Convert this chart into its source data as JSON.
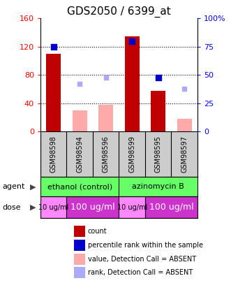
{
  "title": "GDS2050 / 6399_at",
  "samples": [
    "GSM98598",
    "GSM98594",
    "GSM98596",
    "GSM98599",
    "GSM98595",
    "GSM98597"
  ],
  "count_values": [
    110,
    null,
    null,
    135,
    58,
    null
  ],
  "count_absent_values": [
    null,
    30,
    38,
    null,
    null,
    18
  ],
  "percentile_values": [
    75,
    null,
    null,
    80,
    48,
    null
  ],
  "percentile_absent_values": [
    null,
    42,
    48,
    null,
    null,
    38
  ],
  "ylim_left": [
    0,
    160
  ],
  "ylim_right": [
    0,
    100
  ],
  "yticks_left": [
    0,
    40,
    80,
    120,
    160
  ],
  "ytick_labels_left": [
    "0",
    "40",
    "80",
    "120",
    "160"
  ],
  "yticks_right": [
    0,
    25,
    50,
    75,
    100
  ],
  "ytick_labels_right": [
    "0",
    "25",
    "50",
    "75",
    "100%"
  ],
  "count_color": "#c00000",
  "count_absent_color": "#ffaaaa",
  "percentile_color": "#0000cc",
  "percentile_absent_color": "#aaaaff",
  "agent_color": "#66ff66",
  "dose_light_color": "#ff88ff",
  "dose_dark_color": "#cc33cc",
  "sample_bg_color": "#cccccc",
  "legend_items": [
    {
      "label": "count",
      "color": "#c00000"
    },
    {
      "label": "percentile rank within the sample",
      "color": "#0000cc"
    },
    {
      "label": "value, Detection Call = ABSENT",
      "color": "#ffaaaa"
    },
    {
      "label": "rank, Detection Call = ABSENT",
      "color": "#aaaaff"
    }
  ],
  "dose_groups": [
    {
      "start": 0,
      "end": 0,
      "label": "10 ug/ml",
      "light": true
    },
    {
      "start": 1,
      "end": 2,
      "label": "100 ug/ml",
      "light": false
    },
    {
      "start": 3,
      "end": 3,
      "label": "10 ug/ml",
      "light": true
    },
    {
      "start": 4,
      "end": 5,
      "label": "100 ug/ml",
      "light": false
    }
  ]
}
